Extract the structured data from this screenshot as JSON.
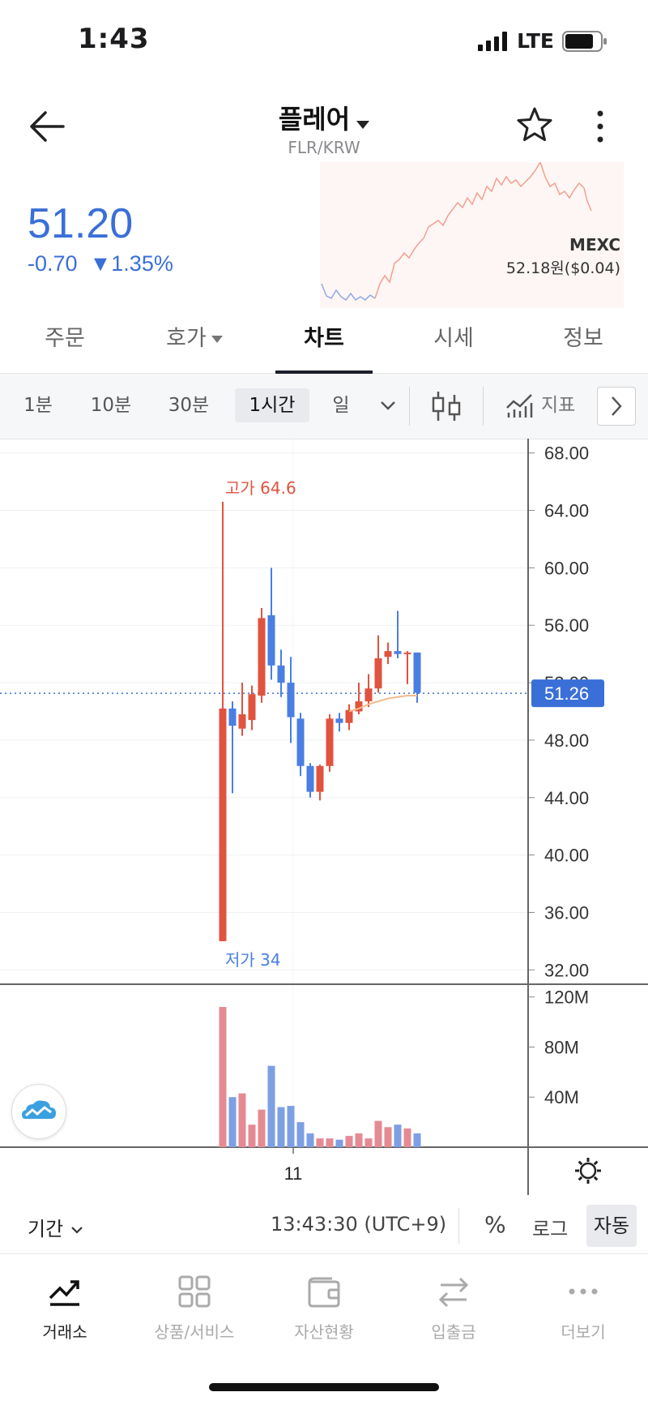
{
  "status": {
    "time": "1:43",
    "network": "LTE"
  },
  "header": {
    "title": "플레어",
    "subtitle": "FLR/KRW"
  },
  "price": {
    "current": "51.20",
    "change": "-0.70",
    "change_pct": "▼1.35%"
  },
  "exchange": {
    "name": "MEXC",
    "price": "52.18원($0.04)"
  },
  "tabs": [
    {
      "label": "주문"
    },
    {
      "label": "호가"
    },
    {
      "label": "차트"
    },
    {
      "label": "시세"
    },
    {
      "label": "정보"
    }
  ],
  "active_tab": "차트",
  "intervals": {
    "m1": "1분",
    "m10": "10분",
    "m30": "30분",
    "h1": "1시간",
    "day": "일",
    "indicator": "지표"
  },
  "active_interval": "1시간",
  "colors": {
    "up": "#e0533f",
    "down": "#4a7ee3",
    "accent": "#3a6fd8",
    "ma": "#f2b98a"
  },
  "chart_data": {
    "type": "candlestick",
    "y_ticks": [
      "68.00",
      "64.00",
      "60.00",
      "56.00",
      "52.00",
      "48.00",
      "44.00",
      "40.00",
      "36.00",
      "32.00"
    ],
    "ylim": [
      31,
      69
    ],
    "current_price_label": "51.26",
    "current_price": 51.26,
    "high_label": "고가 64.6",
    "low_label": "저가 34",
    "x_tick": "11",
    "candles": [
      {
        "o": 34.0,
        "h": 64.6,
        "l": 34.0,
        "c": 50.2
      },
      {
        "o": 50.2,
        "h": 50.7,
        "l": 44.3,
        "c": 49.0
      },
      {
        "o": 48.8,
        "h": 52.0,
        "l": 48.3,
        "c": 49.8
      },
      {
        "o": 49.4,
        "h": 51.8,
        "l": 48.7,
        "c": 51.2
      },
      {
        "o": 51.1,
        "h": 57.2,
        "l": 50.6,
        "c": 56.5
      },
      {
        "o": 56.7,
        "h": 60.0,
        "l": 52.2,
        "c": 53.2
      },
      {
        "o": 53.2,
        "h": 54.3,
        "l": 51.0,
        "c": 52.0
      },
      {
        "o": 52.0,
        "h": 53.8,
        "l": 47.8,
        "c": 49.6
      },
      {
        "o": 49.5,
        "h": 49.9,
        "l": 45.5,
        "c": 46.2
      },
      {
        "o": 46.2,
        "h": 46.4,
        "l": 44.0,
        "c": 44.4
      },
      {
        "o": 44.4,
        "h": 46.3,
        "l": 43.8,
        "c": 46.2
      },
      {
        "o": 46.2,
        "h": 49.8,
        "l": 45.8,
        "c": 49.5
      },
      {
        "o": 49.5,
        "h": 49.9,
        "l": 48.6,
        "c": 49.2
      },
      {
        "o": 49.2,
        "h": 50.5,
        "l": 48.7,
        "c": 50.1
      },
      {
        "o": 50.0,
        "h": 52.0,
        "l": 49.8,
        "c": 50.7
      },
      {
        "o": 50.7,
        "h": 52.6,
        "l": 50.3,
        "c": 51.6
      },
      {
        "o": 51.6,
        "h": 55.3,
        "l": 51.3,
        "c": 53.7
      },
      {
        "o": 53.8,
        "h": 54.8,
        "l": 53.3,
        "c": 54.2
      },
      {
        "o": 54.2,
        "h": 57.0,
        "l": 53.7,
        "c": 54.0
      },
      {
        "o": 54.0,
        "h": 54.2,
        "l": 51.9,
        "c": 54.1
      },
      {
        "o": 54.1,
        "h": 54.1,
        "l": 50.6,
        "c": 51.3
      }
    ],
    "ma": [
      50.0,
      50.2,
      50.5,
      50.7,
      50.9,
      51.0,
      51.1,
      51.1
    ],
    "volume_ticks": [
      "120M",
      "80M",
      "40M"
    ],
    "volume_max": 125,
    "volume": [
      112,
      40,
      43,
      18,
      30,
      65,
      32,
      33,
      20,
      11,
      7,
      7,
      6,
      9,
      11,
      7,
      21,
      16,
      18,
      15,
      11
    ]
  },
  "footer": {
    "period": "기간",
    "clock": "13:43:30 (UTC+9)",
    "percent": "%",
    "log": "로그",
    "auto": "자동"
  },
  "nav": [
    {
      "label": "거래소",
      "icon": "trend-icon"
    },
    {
      "label": "상품/서비스",
      "icon": "grid-icon"
    },
    {
      "label": "자산현황",
      "icon": "wallet-icon"
    },
    {
      "label": "입출금",
      "icon": "transfer-icon"
    },
    {
      "label": "더보기",
      "icon": "more-icon"
    }
  ]
}
